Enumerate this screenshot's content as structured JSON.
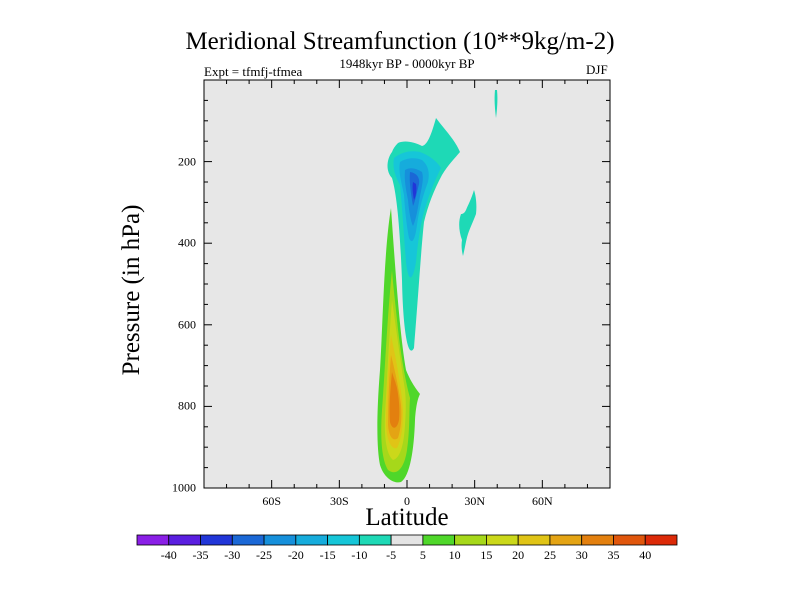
{
  "chart_data": {
    "type": "contour",
    "title": "Meridional Streamfunction (10**9kg/m-2)",
    "subtitle_left": "Expt = tfmfj-tfmea",
    "subtitle_center": "1948kyr BP - 0000kyr BP",
    "subtitle_right": "DJF",
    "xlabel": "Latitude",
    "ylabel": "Pressure (in hPa)",
    "xlim": [
      -90,
      90
    ],
    "ylim": [
      1000,
      0
    ],
    "x_ticks": [
      -60,
      -30,
      0,
      30,
      60
    ],
    "x_tick_labels": [
      "60S",
      "30S",
      "0",
      "30N",
      "60N"
    ],
    "y_ticks": [
      200,
      400,
      600,
      800,
      1000
    ],
    "y_tick_labels": [
      "200",
      "400",
      "600",
      "800",
      "1000"
    ],
    "colorbar": {
      "levels": [
        -40,
        -35,
        -30,
        -25,
        -20,
        -15,
        -10,
        -5,
        5,
        10,
        15,
        20,
        25,
        30,
        35,
        40
      ],
      "labels": [
        "-40",
        "-35",
        "-30",
        "-25",
        "-20",
        "-15",
        "-10",
        "-5",
        "5",
        "10",
        "15",
        "20",
        "25",
        "30",
        "35",
        "40"
      ],
      "colors": [
        "#8a1fe6",
        "#5a1ee0",
        "#2136d8",
        "#1b68d6",
        "#1690db",
        "#16acdc",
        "#16c6d8",
        "#1ed9b6",
        "#e4e4e4",
        "#4fd72a",
        "#a6d81a",
        "#cbd81a",
        "#e0c416",
        "#e4a414",
        "#e3800f",
        "#e0560c",
        "#dc2a08"
      ]
    },
    "features": [
      {
        "name": "negative-cell-upper",
        "min_value": -30,
        "lat_range": [
          0,
          15
        ],
        "pressure_range": [
          80,
          650
        ]
      },
      {
        "name": "positive-cell-lower",
        "max_value": 35,
        "lat_range": [
          -8,
          5
        ],
        "pressure_range": [
          320,
          985
        ]
      },
      {
        "name": "negative-patch-north",
        "min_value": -10,
        "lat_range": [
          22,
          32
        ],
        "pressure_range": [
          250,
          420
        ]
      },
      {
        "name": "negative-sliver-north",
        "min_value": -10,
        "lat_range": [
          39,
          40
        ],
        "pressure_range": [
          5,
          80
        ]
      }
    ],
    "background_color": "#e7e7e7"
  }
}
